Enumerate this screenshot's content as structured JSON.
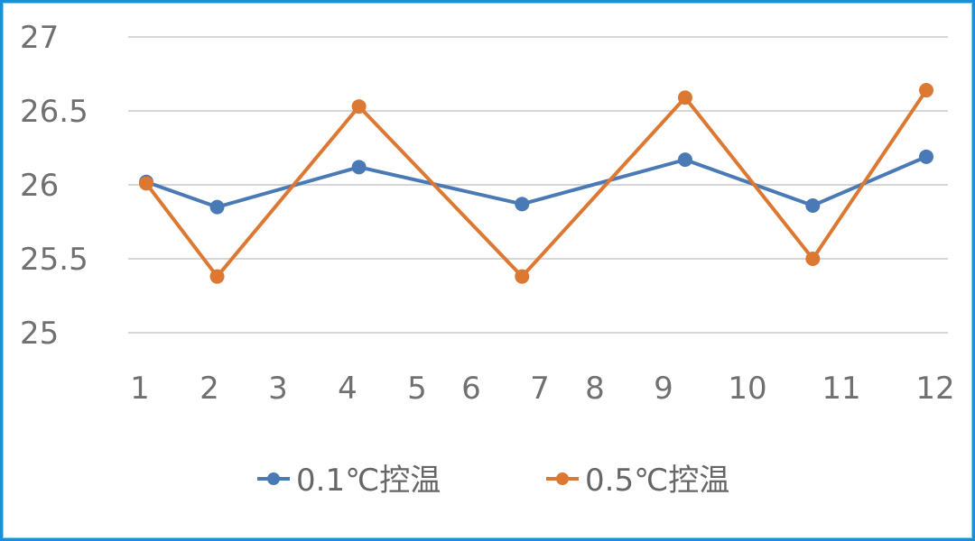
{
  "chart_data": {
    "type": "line",
    "title": "",
    "xlabel": "",
    "ylabel": "",
    "ylim": [
      25,
      27
    ],
    "yticks": [
      "25",
      "25.5",
      "26",
      "26.5",
      "27"
    ],
    "xtick_labels": [
      "1",
      "2",
      "3",
      "4",
      "5",
      "6",
      "7",
      "8",
      "9",
      "10",
      "11",
      "12"
    ],
    "grid": true,
    "legend_position": "bottom",
    "x": [
      1,
      2,
      4,
      6.3,
      8.6,
      10.4,
      12
    ],
    "series": [
      {
        "name": "0.1℃控温",
        "color": "#4472c4",
        "values": [
          26.02,
          25.85,
          26.12,
          25.87,
          26.17,
          25.86,
          26.19
        ]
      },
      {
        "name": "0.5℃控温",
        "color": "#ed7d31",
        "values": [
          26.01,
          25.38,
          26.53,
          25.38,
          26.59,
          25.5,
          26.64
        ]
      }
    ]
  },
  "legend": {
    "items": [
      {
        "label": "0.1℃控温",
        "color": "#4a7ab5"
      },
      {
        "label": "0.5℃控温",
        "color": "#dd7833"
      }
    ]
  },
  "colors": {
    "frame": "#1a8fd6",
    "series1": "#4a7ab5",
    "series2": "#dd7833"
  }
}
